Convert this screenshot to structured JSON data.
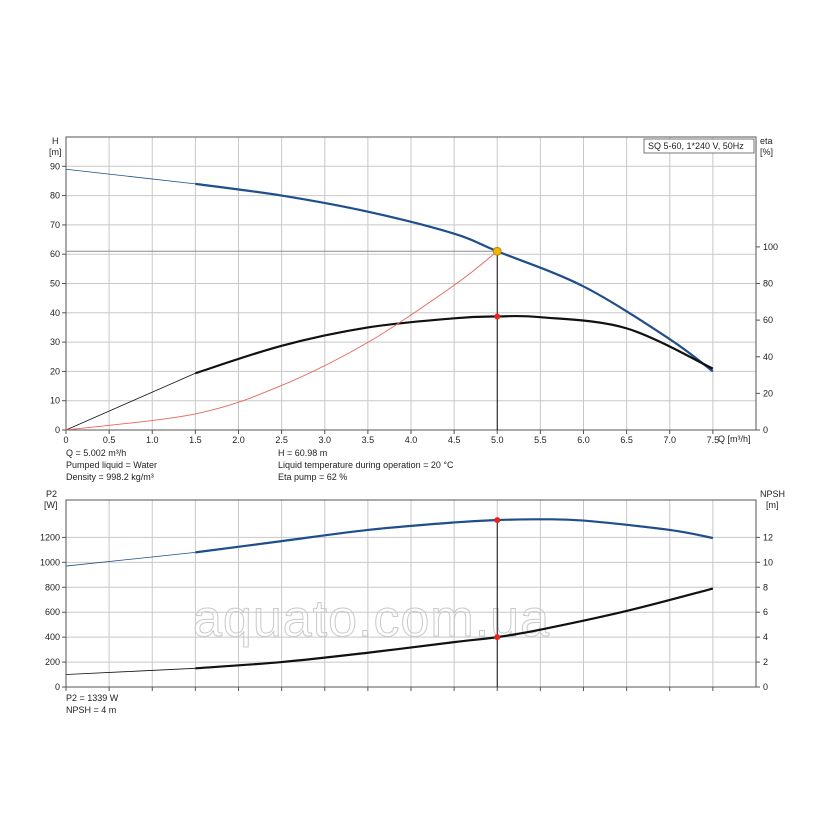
{
  "chart_data": [
    {
      "type": "line",
      "title": "SQ 5-60, 1*240 V, 50Hz",
      "xlabel": "Q [m³/h]",
      "ylabel_left": [
        "H",
        "[m]"
      ],
      "ylabel_right": [
        "eta",
        "[%]"
      ],
      "xlim": [
        0,
        8
      ],
      "ylim_left": [
        0,
        100
      ],
      "ylim_right": [
        0,
        160
      ],
      "x_ticks": [
        "0",
        "0.5",
        "1.0",
        "1.5",
        "2.0",
        "2.5",
        "3.0",
        "3.5",
        "4.0",
        "4.5",
        "5.0",
        "5.5",
        "6.0",
        "6.5",
        "7.0",
        "7.5"
      ],
      "y_ticks_left": [
        "0",
        "10",
        "20",
        "30",
        "40",
        "50",
        "60",
        "70",
        "80",
        "90"
      ],
      "y_ticks_right": [
        "0",
        "20",
        "40",
        "60",
        "80",
        "100"
      ],
      "grid": true,
      "series": [
        {
          "axis": "left",
          "color": "#1f4e8c",
          "x": [
            0,
            1.5,
            2.5,
            3.5,
            4.5,
            5.0,
            6.0,
            7.0,
            7.5
          ],
          "y": [
            89,
            84,
            80,
            74.5,
            67,
            61,
            49,
            31,
            20
          ],
          "operating_range_start": 1.5
        },
        {
          "axis": "right",
          "color": "#111111",
          "x": [
            0,
            1.5,
            2.5,
            3.5,
            4.5,
            5.0,
            5.5,
            6.5,
            7.5
          ],
          "y": [
            0,
            31,
            46,
            56,
            61,
            62,
            61.6,
            55.5,
            33.5
          ],
          "operating_range_start": 1.5
        },
        {
          "axis": "left",
          "color": "#e5675c",
          "x": [
            0,
            1.5,
            2.5,
            3.5,
            4.5,
            5.0
          ],
          "y": [
            0,
            5.5,
            15.2,
            29.9,
            49.4,
            61
          ]
        }
      ],
      "operating_point": {
        "x": 5.0,
        "h": 61,
        "eta": 62
      },
      "info_col1": [
        "Q = 5.002 m³/h",
        "Pumped liquid = Water",
        "Density = 998.2 kg/m³"
      ],
      "info_col2": [
        "H = 60.98 m",
        "Liquid temperature during operation = 20 °C",
        "Eta pump = 62 %"
      ]
    },
    {
      "type": "line",
      "ylabel_left": [
        "P2",
        "[W]"
      ],
      "ylabel_right": [
        "NPSH",
        "[m]"
      ],
      "xlim": [
        0,
        8
      ],
      "ylim_left": [
        0,
        1500
      ],
      "ylim_right": [
        0,
        15
      ],
      "y_ticks_left": [
        "0",
        "200",
        "400",
        "600",
        "800",
        "1000",
        "1200"
      ],
      "y_ticks_right": [
        "0",
        "2",
        "4",
        "6",
        "8",
        "10",
        "12"
      ],
      "grid": true,
      "series": [
        {
          "axis": "left",
          "color": "#1f4e8c",
          "x": [
            0,
            1.5,
            2.5,
            3.5,
            4.5,
            5.0,
            5.5,
            6.0,
            7.0,
            7.5
          ],
          "y": [
            970,
            1080,
            1170,
            1260,
            1320,
            1339,
            1345,
            1335,
            1260,
            1195
          ],
          "operating_range_start": 1.5
        },
        {
          "axis": "right",
          "color": "#111111",
          "x": [
            0,
            1.5,
            2.5,
            3.5,
            4.5,
            5.0,
            5.5,
            6.5,
            7.5
          ],
          "y": [
            1.0,
            1.5,
            2.0,
            2.75,
            3.6,
            4.0,
            4.6,
            6.1,
            7.9
          ],
          "operating_range_start": 1.5
        }
      ],
      "operating_point": {
        "x": 5.0,
        "p2": 1339,
        "npsh": 4
      },
      "info": [
        "P2 = 1339 W",
        "NPSH = 4 m"
      ]
    }
  ],
  "watermark": "aquato.com.ua",
  "colors": {
    "grid": "#c8c8c8",
    "frame": "#555555",
    "op_marker": "#e8241c",
    "op_marker_main": "#f5b400"
  }
}
